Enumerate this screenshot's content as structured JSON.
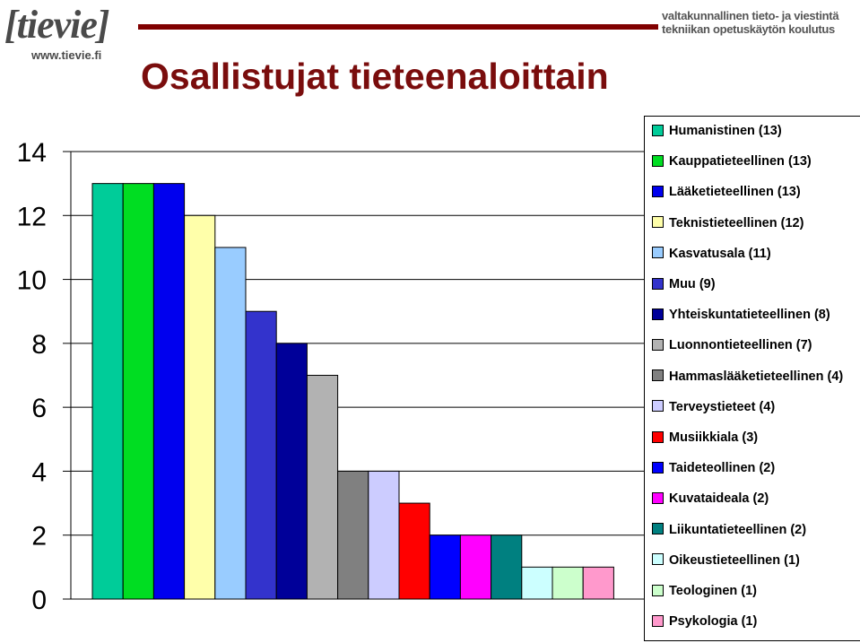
{
  "header": {
    "logo_main": "[tievie]",
    "logo_url": "www.tievie.fi",
    "right_logo_line1": "valtakunnallinen tieto- ja viestintä",
    "right_logo_line2": "tekniikan opetuskäytön koulutus",
    "title": "Osallistujat tieteenaloittain",
    "rule_color": "#800000"
  },
  "chart_data": {
    "type": "bar",
    "title": "Osallistujat tieteenaloittain",
    "xlabel": "",
    "ylabel": "",
    "ylim": [
      0,
      14
    ],
    "yticks": [
      0,
      2,
      4,
      6,
      8,
      10,
      12,
      14
    ],
    "grid": true,
    "legend_position": "right",
    "categories": [
      "Humanistinen (13)",
      "Kauppatieteellinen (13)",
      "Lääketieteellinen (13)",
      "Teknistieteellinen (12)",
      "Kasvatusala (11)",
      "Muu (9)",
      "Yhteiskuntatieteellinen (8)",
      "Luonnontieteellinen (7)",
      "Hammaslääketieteellinen (4)",
      "Terveystieteet (4)",
      "Musiikkiala (3)",
      "Taideteollinen (2)",
      "Kuvataideala (2)",
      "Liikuntatieteellinen (2)",
      "Oikeustieteellinen (1)",
      "Teologinen (1)",
      "Psykologia (1)"
    ],
    "values": [
      13,
      13,
      13,
      12,
      11,
      9,
      8,
      7,
      4,
      4,
      3,
      2,
      2,
      2,
      1,
      1,
      1
    ],
    "colors": [
      "#00CC99",
      "#00DD22",
      "#0000EE",
      "#FFFFAA",
      "#99CCFF",
      "#3333CC",
      "#000099",
      "#B2B2B2",
      "#808080",
      "#CCCCFF",
      "#FF0000",
      "#0000FF",
      "#FF00FF",
      "#008080",
      "#CCFFFF",
      "#CCFFCC",
      "#FF99CC"
    ]
  }
}
